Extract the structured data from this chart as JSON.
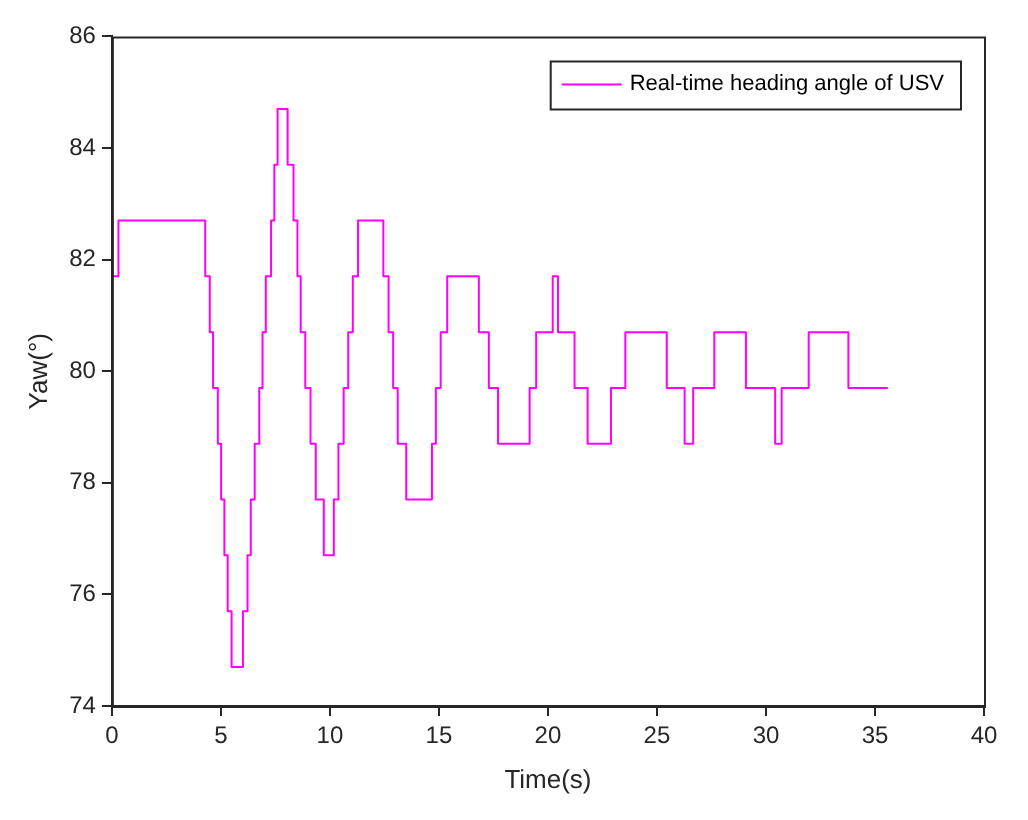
{
  "chart_data": {
    "type": "step",
    "xlabel": "Time(s)",
    "ylabel": "Yaw(°)",
    "xlim": [
      0,
      40
    ],
    "xticks": [
      0,
      5,
      10,
      15,
      20,
      25,
      30,
      35,
      40
    ],
    "ylim": [
      74,
      86
    ],
    "yticks": [
      74,
      76,
      78,
      80,
      82,
      84,
      86
    ],
    "grid": false,
    "legend": "top right",
    "marker": "none",
    "line_style": "solid",
    "series": [
      {
        "name": "Real-time heading angle of USV",
        "color": "#ff00ff",
        "x": [
          0,
          0.3,
          4.28,
          4.49,
          4.64,
          4.86,
          5.01,
          5.16,
          5.31,
          5.49,
          6.01,
          6.22,
          6.37,
          6.55,
          6.76,
          6.91,
          7.06,
          7.3,
          7.45,
          7.6,
          8.06,
          8.33,
          8.51,
          8.66,
          8.87,
          9.11,
          9.35,
          9.72,
          10.18,
          10.39,
          10.63,
          10.84,
          11.05,
          11.29,
          12.45,
          12.69,
          12.9,
          13.11,
          13.5,
          14.68,
          14.86,
          15.08,
          15.38,
          16.83,
          17.29,
          17.71,
          19.16,
          19.46,
          20.22,
          20.46,
          21.22,
          21.82,
          22.89,
          23.55,
          25.45,
          26.27,
          26.66,
          27.63,
          29.08,
          30.42,
          30.72,
          31.96,
          33.78,
          35.59
        ],
        "values": [
          81.7,
          82.7,
          81.7,
          80.7,
          79.7,
          78.7,
          77.7,
          76.7,
          75.7,
          74.7,
          75.7,
          76.7,
          77.7,
          78.7,
          79.7,
          80.7,
          81.7,
          82.7,
          83.7,
          84.7,
          83.7,
          82.7,
          81.7,
          80.7,
          79.7,
          78.7,
          77.7,
          76.7,
          77.7,
          78.7,
          79.7,
          80.7,
          81.7,
          82.7,
          81.7,
          80.7,
          79.7,
          78.7,
          77.7,
          78.7,
          79.7,
          80.7,
          81.7,
          80.7,
          79.7,
          78.7,
          79.7,
          80.7,
          81.7,
          80.7,
          79.7,
          78.7,
          79.7,
          80.7,
          79.7,
          78.7,
          79.7,
          80.7,
          79.7,
          78.7,
          79.7,
          80.7,
          79.7,
          79.7
        ]
      }
    ]
  }
}
